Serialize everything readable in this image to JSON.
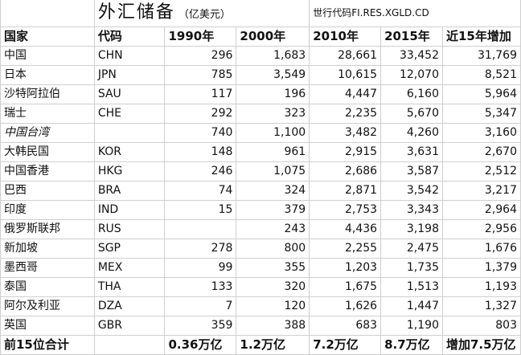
{
  "title": "外汇储备",
  "unit": "（亿美元）",
  "source": "世行代码FI.RES.XGLD.CD",
  "headers": [
    "国家",
    "代码",
    "1990年",
    "2000年",
    "2010年",
    "2015年",
    "近15年增加"
  ],
  "rows": [
    {
      "country": "中国",
      "code": "CHN",
      "y1990": "296",
      "y2000": "1,683",
      "y2010": "28,661",
      "y2015": "33,452",
      "increase": "31,769"
    },
    {
      "country": "日本",
      "code": "JPN",
      "y1990": "785",
      "y2000": "3,549",
      "y2010": "10,615",
      "y2015": "12,070",
      "increase": "8,521"
    },
    {
      "country": "沙特阿拉伯",
      "code": "SAU",
      "y1990": "117",
      "y2000": "196",
      "y2010": "4,447",
      "y2015": "6,160",
      "increase": "5,964"
    },
    {
      "country": "瑞士",
      "code": "CHE",
      "y1990": "292",
      "y2000": "323",
      "y2010": "2,235",
      "y2015": "5,670",
      "increase": "5,347"
    },
    {
      "country": "中国台湾",
      "code": "",
      "y1990": "740",
      "y2000": "1,100",
      "y2010": "3,482",
      "y2015": "4,260",
      "increase": "3,160",
      "italic": true
    },
    {
      "country": "大韩民国",
      "code": "KOR",
      "y1990": "148",
      "y2000": "961",
      "y2010": "2,915",
      "y2015": "3,631",
      "increase": "2,670"
    },
    {
      "country": "中国香港",
      "code": "HKG",
      "y1990": "246",
      "y2000": "1,075",
      "y2010": "2,686",
      "y2015": "3,587",
      "increase": "2,512"
    },
    {
      "country": "巴西",
      "code": "BRA",
      "y1990": "74",
      "y2000": "324",
      "y2010": "2,871",
      "y2015": "3,542",
      "increase": "3,217"
    },
    {
      "country": "印度",
      "code": "IND",
      "y1990": "15",
      "y2000": "379",
      "y2010": "2,753",
      "y2015": "3,343",
      "increase": "2,964"
    },
    {
      "country": "俄罗斯联邦",
      "code": "RUS",
      "y1990": "",
      "y2000": "243",
      "y2010": "4,436",
      "y2015": "3,198",
      "increase": "2,956"
    },
    {
      "country": "新加坡",
      "code": "SGP",
      "y1990": "278",
      "y2000": "800",
      "y2010": "2,255",
      "y2015": "2,475",
      "increase": "1,676"
    },
    {
      "country": "墨西哥",
      "code": "MEX",
      "y1990": "99",
      "y2000": "355",
      "y2010": "1,203",
      "y2015": "1,735",
      "increase": "1,379"
    },
    {
      "country": "泰国",
      "code": "THA",
      "y1990": "133",
      "y2000": "320",
      "y2010": "1,675",
      "y2015": "1,513",
      "increase": "1,193"
    },
    {
      "country": "阿尔及利亚",
      "code": "DZA",
      "y1990": "7",
      "y2000": "120",
      "y2010": "1,626",
      "y2015": "1,447",
      "increase": "1,327"
    },
    {
      "country": "英国",
      "code": "GBR",
      "y1990": "359",
      "y2000": "388",
      "y2010": "683",
      "y2015": "1,190",
      "increase": "803"
    }
  ],
  "total": {
    "label": "前15位合计",
    "y1990": "0.36万亿",
    "y2000": "1.2万亿",
    "y2010": "7.2万亿",
    "y2015": "8.7万亿",
    "increase": "增加7.5万亿"
  }
}
